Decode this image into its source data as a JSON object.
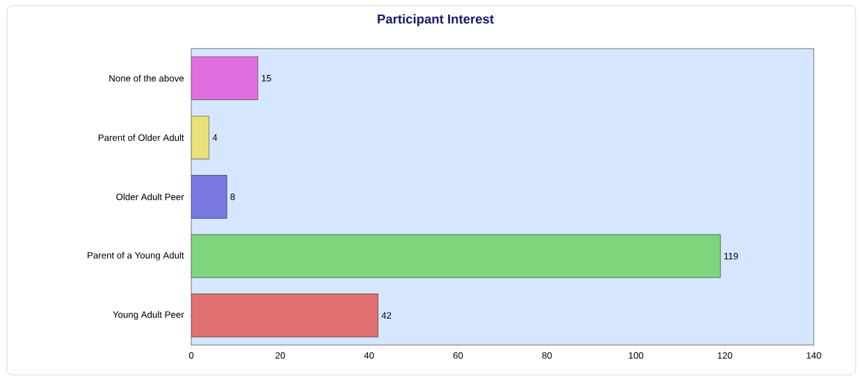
{
  "chart_data": {
    "type": "bar",
    "orientation": "horizontal",
    "title": "Participant Interest",
    "categories": [
      "None of the above",
      "Parent of Older Adult",
      "Older Adult Peer",
      "Parent of a Young Adult",
      "Young Adult Peer"
    ],
    "values": [
      15,
      4,
      8,
      119,
      42
    ],
    "colors": [
      "#e070e0",
      "#e8e078",
      "#7878e0",
      "#80d47c",
      "#e07070"
    ],
    "xlim": [
      0,
      140
    ],
    "xticks": [
      0,
      20,
      40,
      60,
      80,
      100,
      120,
      140
    ],
    "data_labels": true,
    "grid": false
  }
}
